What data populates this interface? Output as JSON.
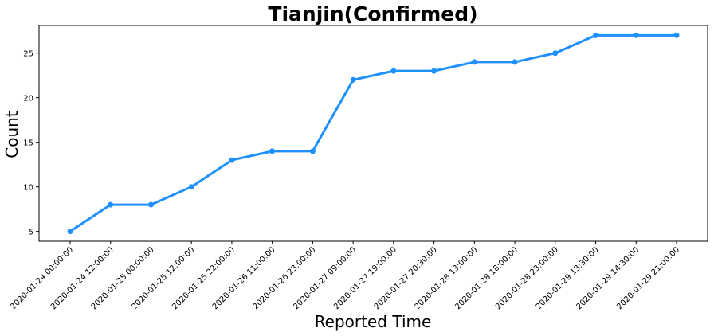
{
  "chart_data": {
    "type": "line",
    "title": "Tianjin(Confirmed)",
    "xlabel": "Reported Time",
    "ylabel": "Count",
    "categories": [
      "2020-01-24 00:00:00",
      "2020-01-24 12:00:00",
      "2020-01-25 00:00:00",
      "2020-01-25 12:00:00",
      "2020-01-25 22:00:00",
      "2020-01-26 11:00:00",
      "2020-01-26 23:00:00",
      "2020-01-27 09:00:00",
      "2020-01-27 19:00:00",
      "2020-01-27 20:30:00",
      "2020-01-28 13:00:00",
      "2020-01-28 18:00:00",
      "2020-01-28 23:00:00",
      "2020-01-29 13:30:00",
      "2020-01-29 14:30:00",
      "2020-01-29 21:00:00"
    ],
    "series": [
      {
        "values": [
          5,
          8,
          8,
          10,
          13,
          14,
          14,
          22,
          23,
          23,
          24,
          24,
          25,
          27,
          27,
          27
        ],
        "color": "#1e90ff"
      }
    ],
    "ylim": [
      3.9,
      28.1
    ],
    "yticks": [
      5,
      10,
      15,
      20,
      25
    ],
    "grid": false,
    "legend": "none"
  }
}
